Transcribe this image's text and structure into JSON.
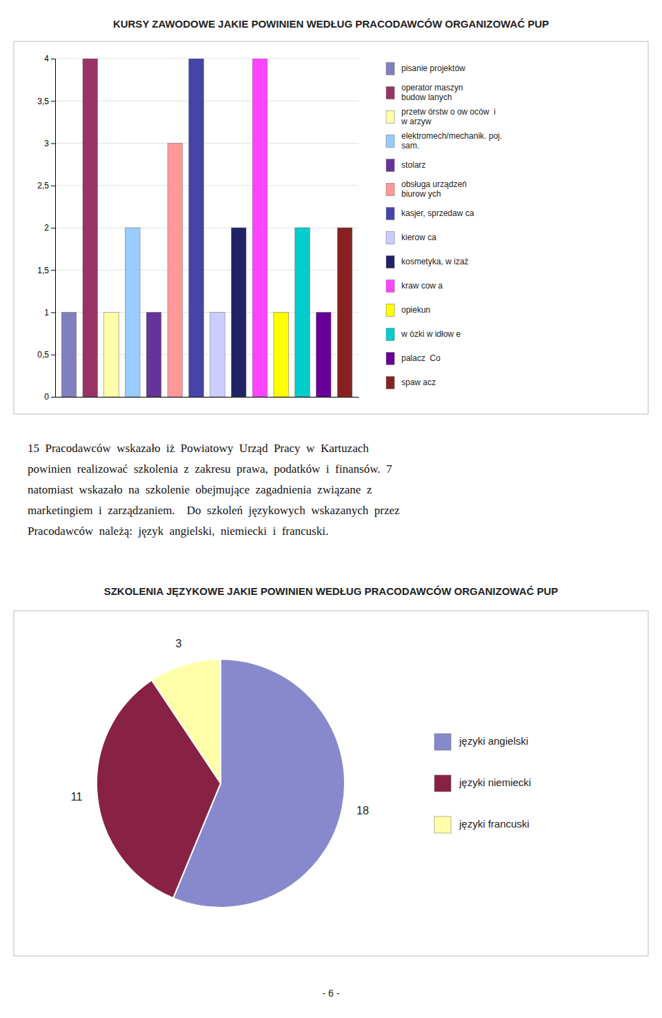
{
  "chart_data": [
    {
      "type": "bar",
      "title": "KURSY ZAWODOWE JAKIE POWINIEN WEDŁUG PRACODAWCÓW ORGANIZOWAĆ PUP",
      "categories": [
        "pisanie projektów",
        "operator maszyn\nbudow lanych",
        "przetw órstw o ow oców  i\nw arzyw",
        "elektromech/mechanik. poj.\nsam.",
        "stolarz",
        "obsługa urządzeń\nbiurow ych",
        "kasjer, sprzedaw ca",
        "kierow ca",
        "kosmetyka, w izaż",
        "kraw cow a",
        "opiekun",
        "w ózki w idłow e",
        "palacz  Co",
        "spaw acz"
      ],
      "values": [
        1,
        4,
        1,
        2,
        1,
        3,
        4,
        1,
        2,
        4,
        1,
        2,
        1,
        2
      ],
      "colors": [
        "#8080C0",
        "#993366",
        "#FFFFAA",
        "#99CCFF",
        "#663399",
        "#FF9999",
        "#4444AA",
        "#CCCCFF",
        "#222266",
        "#FF44FF",
        "#FFFF00",
        "#00CCCC",
        "#660099",
        "#882222"
      ],
      "ylim": [
        0,
        4
      ],
      "yticks": [
        0,
        {
          "value": 0.5,
          "label": "0,5"
        },
        1,
        {
          "value": 1.5,
          "label": "1,5"
        },
        2,
        {
          "value": 2.5,
          "label": "2,5"
        },
        3,
        {
          "value": 3.5,
          "label": "3,5"
        },
        4
      ],
      "grid": true,
      "legend": "right",
      "tick_labels": "y"
    },
    {
      "type": "pie",
      "title": "SZKOLENIA JĘZYKOWE JAKIE POWINIEN WEDŁUG PRACODAWCÓW ORGANIZOWAĆ PUP",
      "categories": [
        "języki angielski",
        "języki niemiecki",
        "języki francuski"
      ],
      "values": [
        18,
        11,
        3
      ],
      "colors": [
        "#8888CC",
        "#882244",
        "#FFFFAA"
      ],
      "legend": "right",
      "data_labels": true
    }
  ],
  "paragraph": [
    "15  Pracodawców  wskazało  iż  Powiatowy  Urząd  Pracy  w  Kartuzach",
    "powinien  realizować  szkolenia  z  zakresu  prawa,  podatków  i  finansów.  7",
    "natomiast  wskazało  na  szkolenie  obejmujące  zagadnienia  związane  z",
    "marketingiem  i  zarządzaniem.    Do  szkoleń  językowych  wskazanych  przez",
    "Pracodawców  należą:  język  angielski,  niemiecki  i  francuski."
  ],
  "page_number": "- 6 -"
}
